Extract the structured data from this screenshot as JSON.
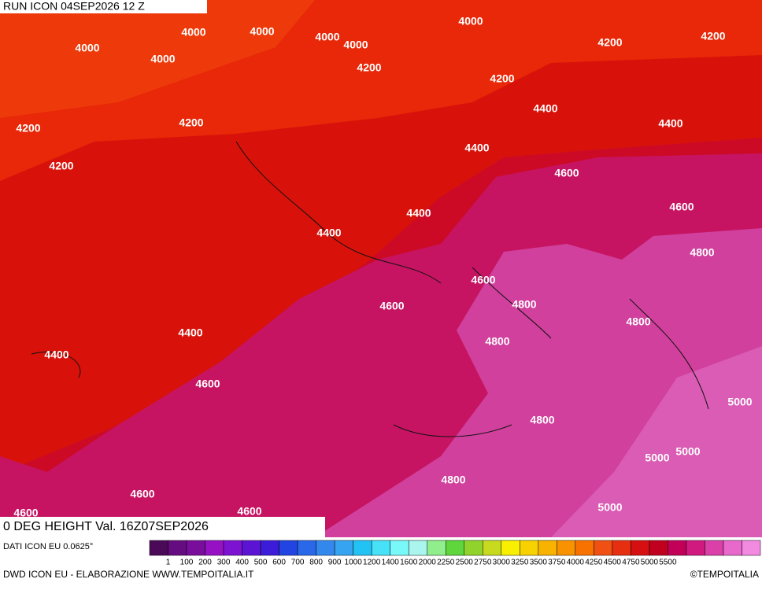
{
  "header": {
    "run": "RUN ICON 04SEP2026 12 Z",
    "title": "0 DEG HEIGHT Val. 16Z07SEP2026"
  },
  "contour_labels": [
    "4000",
    "4000",
    "4000",
    "4000",
    "4000",
    "4000",
    "4000",
    "4200",
    "4200",
    "4200",
    "4200",
    "4200",
    "4200",
    "4200",
    "4400",
    "4400",
    "4400",
    "4400",
    "4400",
    "4600",
    "4600",
    "4800",
    "4600",
    "4600",
    "4800",
    "4800",
    "4400",
    "4400",
    "4800",
    "4600",
    "5000",
    "4800",
    "5000",
    "5000",
    "4800",
    "4600",
    "4600",
    "4600",
    "5000"
  ],
  "legend": {
    "source": "DATI ICON EU 0.0625°",
    "colors": [
      "#4a0a58",
      "#650c80",
      "#7a0e9c",
      "#9610c4",
      "#7e12d2",
      "#5c14d4",
      "#3c1cd8",
      "#2244e2",
      "#2a68ea",
      "#3388ee",
      "#36a4f0",
      "#22c2f4",
      "#48e2f8",
      "#78f8f8",
      "#aaf6ee",
      "#90ee8c",
      "#5ed63c",
      "#92d22c",
      "#c8da20",
      "#f8f000",
      "#f8d200",
      "#f8b200",
      "#f89200",
      "#f87200",
      "#f05012",
      "#e62e10",
      "#d61010",
      "#c0001e",
      "#c20058",
      "#d01a80",
      "#da40a8",
      "#e868cc",
      "#f28ae0"
    ],
    "labels": [
      "1",
      "100",
      "200",
      "300",
      "400",
      "500",
      "600",
      "700",
      "800",
      "900",
      "1000",
      "1200",
      "1400",
      "1600",
      "2000",
      "2250",
      "2500",
      "2750",
      "3000",
      "3250",
      "3500",
      "3750",
      "4000",
      "4250",
      "4500",
      "4750",
      "5000",
      "5500"
    ]
  },
  "footer": {
    "left": "DWD ICON EU - ELABORAZIONE WWW.TEMPOITALIA.IT",
    "right": "©TEMPOITALIA"
  }
}
